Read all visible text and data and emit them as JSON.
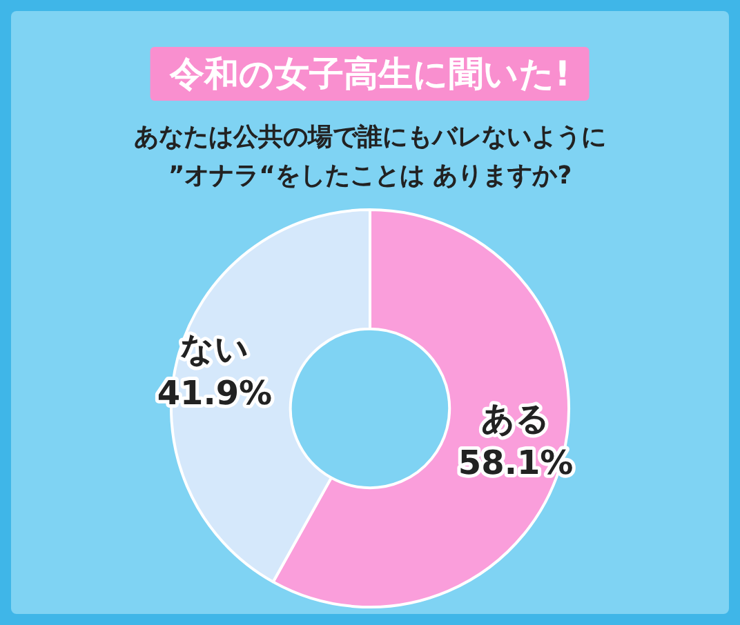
{
  "chart_data": {
    "type": "donut",
    "title": "令和の女子高生に聞いた!",
    "subtitle": "あなたは公共の場で誰にもバレないように\n”オナラ“をしたことは ありますか?",
    "categories": [
      "ある",
      "ない"
    ],
    "values": [
      58.1,
      41.9
    ],
    "value_labels": [
      "58.1%",
      "41.9%"
    ],
    "colors": [
      "#fa9edb",
      "#d5e8fb"
    ],
    "legend": false
  }
}
